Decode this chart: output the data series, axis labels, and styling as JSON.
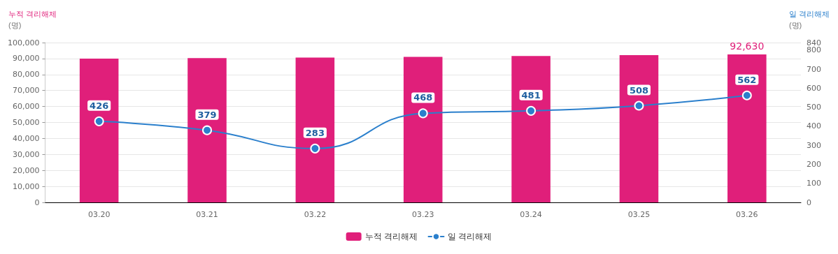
{
  "chart_data": {
    "type": "bar",
    "ylabel": "누적 격리해제\n(명)",
    "y2label": "일 격리해제\n(명)",
    "categories": [
      "03.20",
      "03.21",
      "03.22",
      "03.23",
      "03.24",
      "03.25",
      "03.26"
    ],
    "series": [
      {
        "name": "누적 격리해제",
        "color": "#e01f7a",
        "values": [
          90000,
          90300,
          90600,
          91100,
          91600,
          92100,
          92630
        ],
        "value_labels": [
          null,
          null,
          null,
          null,
          null,
          null,
          "92,630"
        ]
      },
      {
        "name": "일 격리해제",
        "type": "line",
        "axis": "y2",
        "color": "#2a7fcc",
        "values": [
          426,
          379,
          283,
          468,
          481,
          508,
          562
        ],
        "value_labels": [
          "426",
          "379",
          "283",
          "468",
          "481",
          "508",
          "562"
        ]
      }
    ],
    "ylim": [
      0,
      100000
    ],
    "yticks": [
      0,
      {
        "value": 10000,
        "label": "10,000"
      },
      {
        "value": 20000,
        "label": "20,000"
      },
      {
        "value": 30000,
        "label": "30,000"
      },
      {
        "value": 40000,
        "label": "40,000"
      },
      {
        "value": 50000,
        "label": "50,000"
      },
      {
        "value": 60000,
        "label": "60,000"
      },
      {
        "value": 70000,
        "label": "70,000"
      },
      {
        "value": 80000,
        "label": "80,000"
      },
      {
        "value": 90000,
        "label": "90,000"
      },
      {
        "value": 100000,
        "label": "100,000"
      }
    ],
    "y2lim": [
      0,
      840
    ],
    "y2ticks": [
      0,
      100,
      200,
      300,
      400,
      500,
      600,
      700,
      800,
      840
    ],
    "grid": "y",
    "legend": "bottom",
    "marker": "circle",
    "line_style": "solid"
  }
}
